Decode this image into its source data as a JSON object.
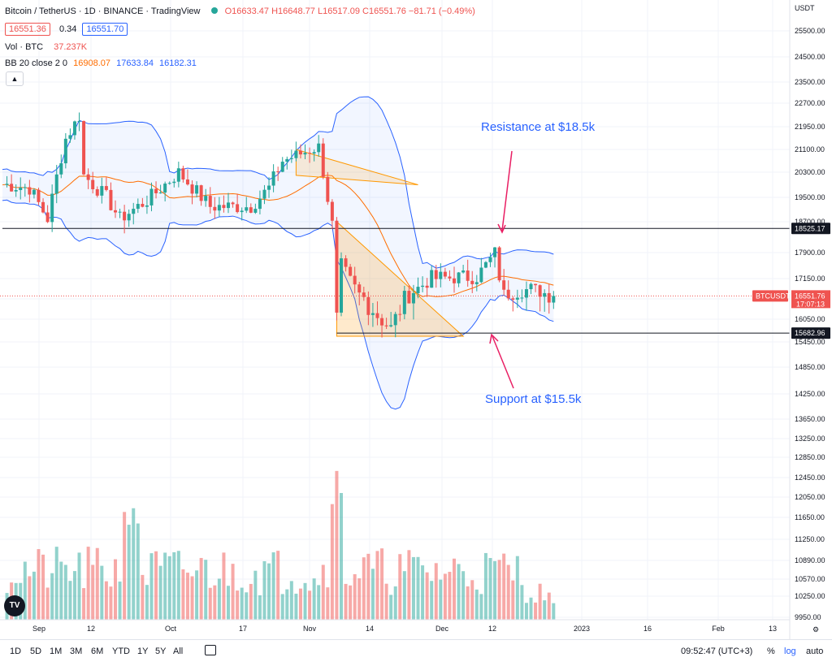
{
  "header": {
    "title": "Bitcoin / TetherUS · 1D · BINANCE · TradingView",
    "ohlc": "O16633.47 H16648.77 L16517.09 C16551.76 −81.71 (−0.49%)",
    "bid": "16551.36",
    "spread": "0.34",
    "ask": "16551.70",
    "vol_label": "Vol · BTC",
    "vol_value": "37.237K",
    "bb_label": "BB 20 close 2 0",
    "bb_mid": "16908.07",
    "bb_up": "17633.84",
    "bb_low": "16182.31"
  },
  "axis": {
    "currency": "USDT",
    "price_ticks": [
      "25500.00",
      "24500.00",
      "23500.00",
      "22700.00",
      "21950.00",
      "21100.00",
      "20300.00",
      "19500.00",
      "18700.00",
      "17900.00",
      "17150.00",
      "16450.00",
      "16050.00",
      "15450.00",
      "14850.00",
      "14250.00",
      "13650.00",
      "13250.00",
      "12850.00",
      "12450.00",
      "12050.00",
      "11650.00",
      "11250.00",
      "10890.00",
      "10570.00",
      "10250.00",
      "9950.00"
    ],
    "time_ticks": [
      "Sep",
      "12",
      "Oct",
      "17",
      "Nov",
      "14",
      "Dec",
      "12",
      "2023",
      "16",
      "Feb",
      "13"
    ]
  },
  "tags": {
    "resistance": "18525.17",
    "ticker": "BTCUSDT",
    "last_price": "16551.76",
    "countdown": "17:07:13",
    "support": "15682.96"
  },
  "annotations": {
    "resistance": "Resistance at $18.5k",
    "support": "Support at $15.5k"
  },
  "toolbar": {
    "timeframes": [
      "1D",
      "5D",
      "1M",
      "3M",
      "6M",
      "YTD",
      "1Y",
      "5Y",
      "All"
    ],
    "clock": "09:52:47 (UTC+3)",
    "percent": "%",
    "log": "log",
    "auto": "auto"
  },
  "colors": {
    "up": "#26a69a",
    "down": "#ef5350",
    "bb_band": "#2962ff",
    "bb_mid": "#ff6d00",
    "annotation": "#2962ff",
    "arrow": "#e91e63"
  },
  "chart_data": {
    "type": "candlestick",
    "title": "Bitcoin / TetherUS · 1D · BINANCE",
    "ylim": [
      9800,
      26000
    ],
    "x_range": [
      "Aug 27 2022",
      "Feb 21 2023"
    ],
    "key_levels": {
      "resistance": 18525.17,
      "support": 15682.96
    },
    "price_path": [
      {
        "date": "Aug 28",
        "price": 19900
      },
      {
        "date": "Sep 2",
        "price": 19800
      },
      {
        "date": "Sep 6",
        "price": 18800
      },
      {
        "date": "Sep 10",
        "price": 21500
      },
      {
        "date": "Sep 13",
        "price": 22300
      },
      {
        "date": "Sep 14",
        "price": 20200
      },
      {
        "date": "Sep 19",
        "price": 19500
      },
      {
        "date": "Sep 22",
        "price": 18800
      },
      {
        "date": "Sep 28",
        "price": 19400
      },
      {
        "date": "Oct 5",
        "price": 20300
      },
      {
        "date": "Oct 12",
        "price": 19200
      },
      {
        "date": "Oct 21",
        "price": 19200
      },
      {
        "date": "Oct 25",
        "price": 19800
      },
      {
        "date": "Oct 28",
        "price": 20700
      },
      {
        "date": "Nov 5",
        "price": 21200
      },
      {
        "date": "Nov 8",
        "price": 18600
      },
      {
        "date": "Nov 9",
        "price": 16000
      },
      {
        "date": "Nov 10",
        "price": 17500
      },
      {
        "date": "Nov 14",
        "price": 16600
      },
      {
        "date": "Nov 21",
        "price": 15800
      },
      {
        "date": "Nov 24",
        "price": 16500
      },
      {
        "date": "Nov 30",
        "price": 17150
      },
      {
        "date": "Dec 10",
        "price": 17200
      },
      {
        "date": "Dec 14",
        "price": 17850
      },
      {
        "date": "Dec 16",
        "price": 16600
      },
      {
        "date": "Dec 22",
        "price": 16800
      },
      {
        "date": "Dec 27",
        "price": 16552
      }
    ],
    "volume_note": "Volume bars rendered in lower pane; peak around Nov 8-9"
  }
}
